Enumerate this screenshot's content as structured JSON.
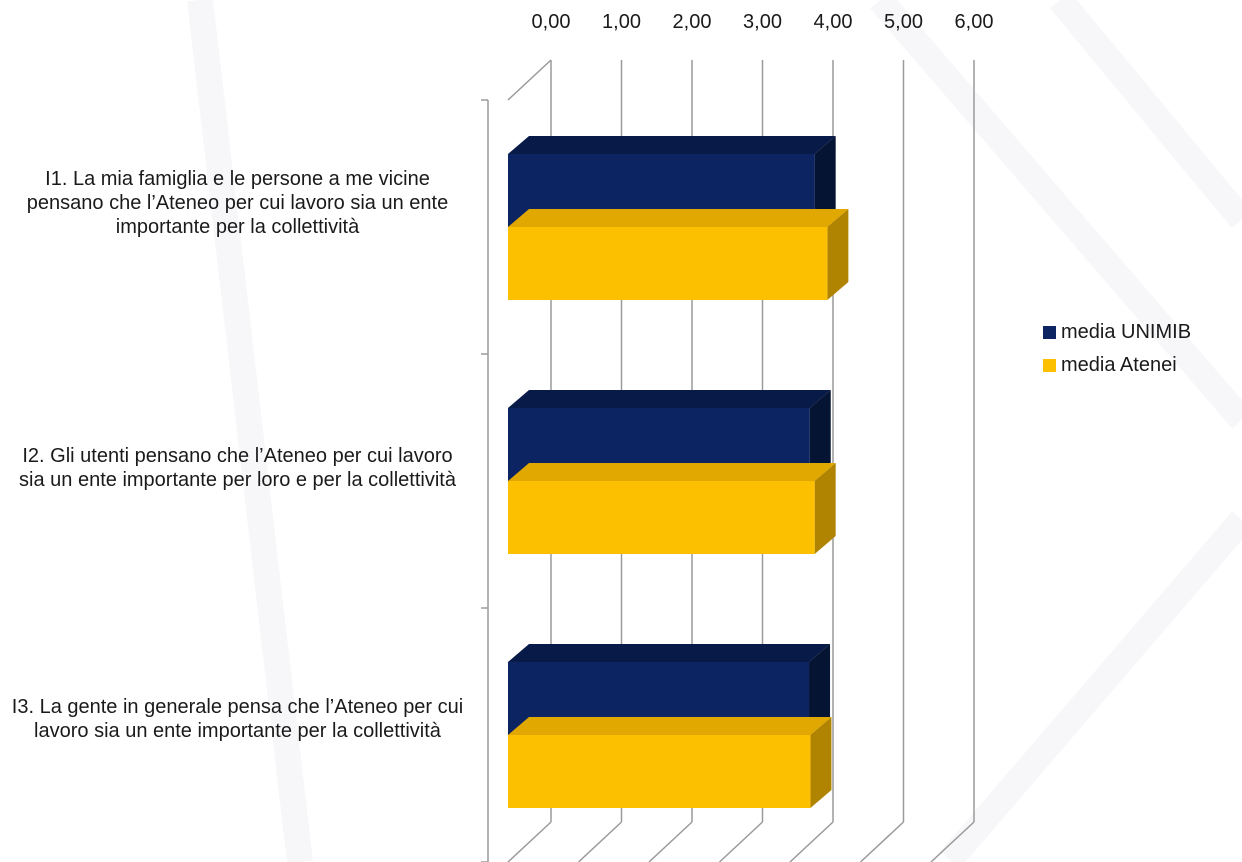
{
  "colors": {
    "background": "#ffffff",
    "decor": "#e9e9ee",
    "grid": "#9a9a9a",
    "unimib_front": "#0c2461",
    "unimib_top": "#081a48",
    "unimib_side": "#061433",
    "atenei_front": "#fdc000",
    "atenei_top": "#e0a800",
    "atenei_side": "#b08400"
  },
  "chart_data": {
    "type": "bar",
    "orientation": "horizontal",
    "style": "3d",
    "categories": [
      "I1. La mia famiglia e le persone a me vicine pensano che l’Ateneo per cui lavoro sia un ente importante per la collettività",
      "I2. Gli utenti pensano che l’Ateneo per cui lavoro sia un ente importante per loro e per la collettività",
      "I3. La gente in generale pensa che l’Ateneo per cui lavoro sia un ente importante per la collettività"
    ],
    "series": [
      {
        "name": "media UNIMIB",
        "values": [
          4.35,
          4.28,
          4.27
        ]
      },
      {
        "name": "media Atenei",
        "values": [
          4.53,
          4.35,
          4.29
        ]
      }
    ],
    "xlim": [
      0,
      6
    ],
    "xticks": [
      0,
      1,
      2,
      3,
      4,
      5,
      6
    ],
    "tick_labels": [
      "0,00",
      "1,00",
      "2,00",
      "3,00",
      "4,00",
      "5,00",
      "6,00"
    ],
    "axis_position": "top",
    "grid": true,
    "legend_position": "right"
  }
}
